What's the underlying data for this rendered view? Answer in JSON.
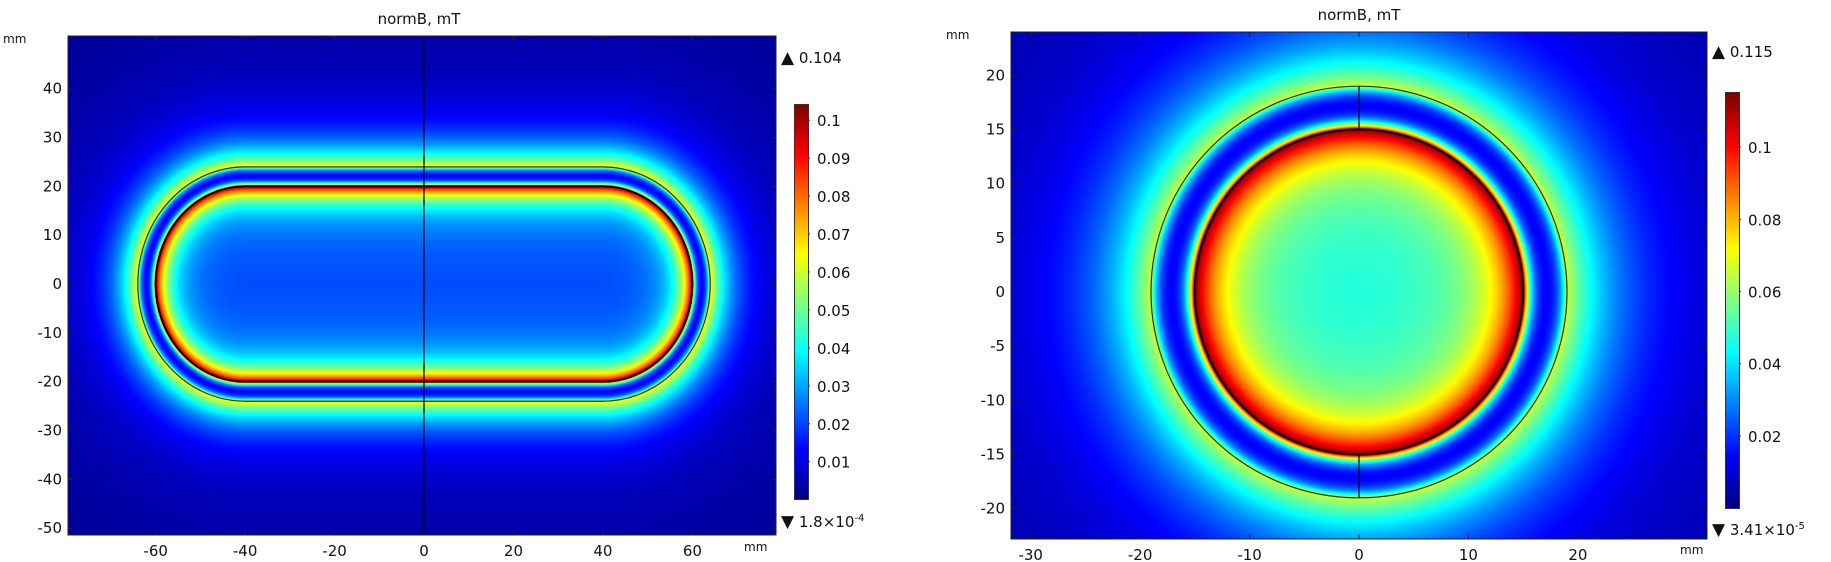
{
  "chart_data": [
    {
      "type": "heatmap",
      "title": "normB, mT",
      "xlabel": "mm",
      "ylabel": "mm",
      "xlim": [
        -79.6,
        78.7
      ],
      "ylim": [
        -51.4,
        50.8
      ],
      "xticks": [
        -60,
        -40,
        -20,
        0,
        20,
        40,
        60
      ],
      "yticks": [
        -50,
        -40,
        -30,
        -20,
        -10,
        0,
        10,
        20,
        30,
        40
      ],
      "xtick_labels": [
        "-60",
        "-40",
        "-20",
        "0",
        "20",
        "40",
        "60"
      ],
      "ytick_labels": [
        "-50",
        "-40",
        "-30",
        "-20",
        "-10",
        "0",
        "10",
        "20",
        "30",
        "40"
      ],
      "shape": "stadium",
      "inner_boundary_radius": 20,
      "outer_boundary_radius": 24,
      "straight_half_length": 40,
      "colorbar": {
        "colormap": "jet",
        "max": 0.104,
        "min": 0.00018,
        "max_label": "0.104",
        "min_label": "1.8×10",
        "min_label_exp": "-4",
        "ticks": [
          0.01,
          0.02,
          0.03,
          0.04,
          0.05,
          0.06,
          0.07,
          0.08,
          0.09,
          0.1
        ],
        "tick_labels": [
          "0.01",
          "0.02",
          "0.03",
          "0.04",
          "0.05",
          "0.06",
          "0.07",
          "0.08",
          "0.09",
          "0.1"
        ]
      },
      "field_levels": {
        "center": 0.02,
        "inner_edge": 0.1,
        "gap_min": 0.005,
        "outer_edge": 0.06,
        "far": 0.003
      }
    },
    {
      "type": "heatmap",
      "title": "normB, mT",
      "xlabel": "mm",
      "ylabel": "mm",
      "xlim": [
        -31.8,
        31.8
      ],
      "ylim": [
        -22.8,
        24
      ],
      "xticks": [
        -30,
        -20,
        -10,
        0,
        10,
        20
      ],
      "yticks": [
        -20,
        -15,
        -10,
        -5,
        0,
        5,
        10,
        15,
        20
      ],
      "xtick_labels": [
        "-30",
        "-20",
        "-10",
        "0",
        "10",
        "20"
      ],
      "ytick_labels": [
        "-20",
        "-15",
        "-10",
        "-5",
        "0",
        "5",
        "10",
        "15",
        "20"
      ],
      "shape": "circle",
      "inner_boundary_radius": 15,
      "outer_boundary_radius": 19,
      "straight_half_length": 0,
      "colorbar": {
        "colormap": "jet",
        "max": 0.115,
        "min": 3.41e-05,
        "max_label": "0.115",
        "min_label": "3.41×10",
        "min_label_exp": "-5",
        "ticks": [
          0.02,
          0.04,
          0.06,
          0.08,
          0.1
        ],
        "tick_labels": [
          "0.02",
          "0.04",
          "0.06",
          "0.08",
          "0.1"
        ]
      },
      "field_levels": {
        "center": 0.045,
        "inner_edge": 0.115,
        "gap_min": 0.005,
        "outer_edge": 0.06,
        "far": 0.003
      }
    }
  ]
}
